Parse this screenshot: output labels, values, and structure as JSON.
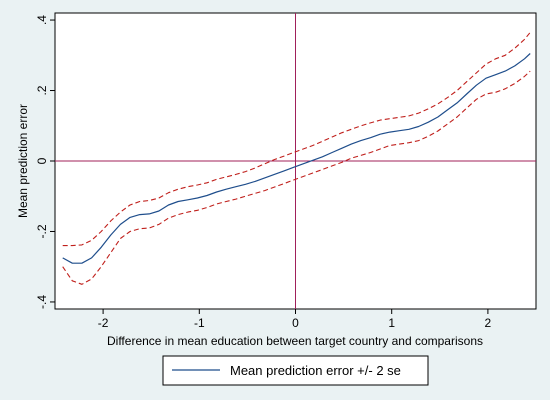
{
  "chart_data": {
    "type": "line",
    "title": "",
    "xlabel": "Difference in mean education between target country and comparisons",
    "ylabel": "Mean prediction error",
    "xlim": [
      -2.5,
      2.5
    ],
    "ylim": [
      -0.42,
      0.42
    ],
    "x_ticks": [
      -2,
      -1,
      0,
      1,
      2
    ],
    "x_tick_labels": [
      "-2",
      "-1",
      "0",
      "1",
      "2"
    ],
    "y_ticks": [
      -0.4,
      -0.2,
      0,
      0.2,
      0.4
    ],
    "y_tick_labels": [
      "-.4",
      "-.2",
      "0",
      ".2",
      ".4"
    ],
    "grid": false,
    "reference_lines": {
      "x": 0,
      "y": 0,
      "color": "#a0205a"
    },
    "legend": {
      "position": "bottom",
      "entries": [
        "Mean prediction error +/- 2 se"
      ]
    },
    "series": [
      {
        "name": "Mean prediction error +/- 2 se",
        "role": "mean",
        "color": "#1f4e8c",
        "style": "solid",
        "x": [
          -2.42,
          -2.32,
          -2.22,
          -2.12,
          -2.02,
          -1.92,
          -1.82,
          -1.72,
          -1.62,
          -1.52,
          -1.42,
          -1.32,
          -1.22,
          -1.12,
          -1.02,
          -0.92,
          -0.82,
          -0.72,
          -0.62,
          -0.52,
          -0.42,
          -0.32,
          -0.22,
          -0.12,
          -0.02,
          0.08,
          0.18,
          0.28,
          0.38,
          0.48,
          0.58,
          0.68,
          0.78,
          0.88,
          0.98,
          1.08,
          1.18,
          1.28,
          1.38,
          1.48,
          1.58,
          1.68,
          1.78,
          1.88,
          1.98,
          2.08,
          2.18,
          2.28,
          2.38,
          2.44
        ],
        "values": [
          -0.275,
          -0.29,
          -0.29,
          -0.275,
          -0.245,
          -0.21,
          -0.18,
          -0.16,
          -0.152,
          -0.15,
          -0.142,
          -0.125,
          -0.115,
          -0.11,
          -0.105,
          -0.098,
          -0.088,
          -0.08,
          -0.073,
          -0.066,
          -0.058,
          -0.048,
          -0.038,
          -0.028,
          -0.018,
          -0.008,
          0.002,
          0.012,
          0.024,
          0.036,
          0.048,
          0.058,
          0.066,
          0.076,
          0.082,
          0.086,
          0.09,
          0.098,
          0.11,
          0.125,
          0.145,
          0.165,
          0.19,
          0.215,
          0.235,
          0.245,
          0.255,
          0.27,
          0.29,
          0.305
        ]
      },
      {
        "role": "upper",
        "color": "#c0201c",
        "style": "dashed",
        "x": [
          -2.42,
          -2.32,
          -2.22,
          -2.12,
          -2.02,
          -1.92,
          -1.82,
          -1.72,
          -1.62,
          -1.52,
          -1.42,
          -1.32,
          -1.22,
          -1.12,
          -1.02,
          -0.92,
          -0.82,
          -0.72,
          -0.62,
          -0.52,
          -0.42,
          -0.32,
          -0.22,
          -0.12,
          -0.02,
          0.08,
          0.18,
          0.28,
          0.38,
          0.48,
          0.58,
          0.68,
          0.78,
          0.88,
          0.98,
          1.08,
          1.18,
          1.28,
          1.38,
          1.48,
          1.58,
          1.68,
          1.78,
          1.88,
          1.98,
          2.08,
          2.18,
          2.28,
          2.38,
          2.44
        ],
        "values": [
          -0.24,
          -0.24,
          -0.238,
          -0.225,
          -0.2,
          -0.17,
          -0.145,
          -0.125,
          -0.115,
          -0.112,
          -0.105,
          -0.09,
          -0.08,
          -0.073,
          -0.068,
          -0.062,
          -0.052,
          -0.045,
          -0.038,
          -0.03,
          -0.02,
          -0.008,
          0.004,
          0.014,
          0.024,
          0.034,
          0.044,
          0.056,
          0.068,
          0.08,
          0.09,
          0.1,
          0.108,
          0.116,
          0.12,
          0.124,
          0.128,
          0.136,
          0.148,
          0.162,
          0.18,
          0.2,
          0.225,
          0.25,
          0.275,
          0.29,
          0.3,
          0.32,
          0.345,
          0.365
        ]
      },
      {
        "role": "lower",
        "color": "#c0201c",
        "style": "dashed",
        "x": [
          -2.42,
          -2.32,
          -2.22,
          -2.12,
          -2.02,
          -1.92,
          -1.82,
          -1.72,
          -1.62,
          -1.52,
          -1.42,
          -1.32,
          -1.22,
          -1.12,
          -1.02,
          -0.92,
          -0.82,
          -0.72,
          -0.62,
          -0.52,
          -0.42,
          -0.32,
          -0.22,
          -0.12,
          -0.02,
          0.08,
          0.18,
          0.28,
          0.38,
          0.48,
          0.58,
          0.68,
          0.78,
          0.88,
          0.98,
          1.08,
          1.18,
          1.28,
          1.38,
          1.48,
          1.58,
          1.68,
          1.78,
          1.88,
          1.98,
          2.08,
          2.18,
          2.28,
          2.38,
          2.44
        ],
        "values": [
          -0.3,
          -0.34,
          -0.35,
          -0.335,
          -0.3,
          -0.26,
          -0.22,
          -0.2,
          -0.192,
          -0.19,
          -0.18,
          -0.162,
          -0.152,
          -0.145,
          -0.14,
          -0.132,
          -0.122,
          -0.115,
          -0.108,
          -0.1,
          -0.092,
          -0.084,
          -0.074,
          -0.064,
          -0.054,
          -0.044,
          -0.034,
          -0.024,
          -0.014,
          -0.004,
          0.008,
          0.016,
          0.024,
          0.034,
          0.044,
          0.048,
          0.052,
          0.058,
          0.07,
          0.085,
          0.105,
          0.125,
          0.15,
          0.175,
          0.19,
          0.195,
          0.205,
          0.22,
          0.24,
          0.255
        ]
      }
    ]
  }
}
